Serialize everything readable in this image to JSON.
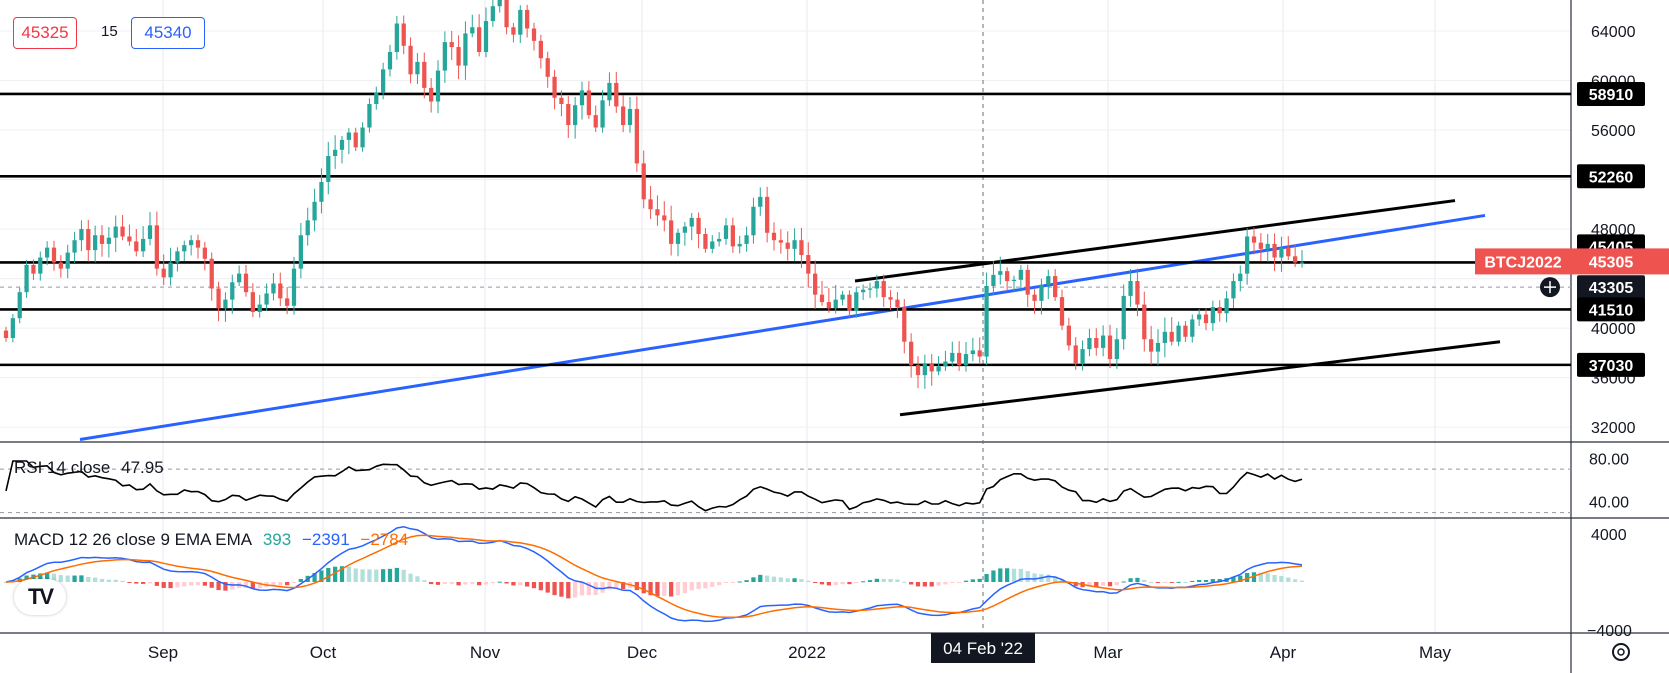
{
  "header": {
    "bid": "45325",
    "spread": "15",
    "ask": "45340"
  },
  "symbol_tag": "BTCJ2022",
  "crosshair_date": "04 Feb '22",
  "colors": {
    "up": "#26a69a",
    "down": "#ef5350",
    "trend_blue": "#2962ff",
    "macd_line": "#2962ff",
    "signal_line": "#ff6d00",
    "sr_line": "#000000",
    "last_price": "#ef5350"
  },
  "chart_data": [
    {
      "type": "candlestick",
      "x_ticks": [
        "Sep",
        "Oct",
        "Nov",
        "Dec",
        "2022",
        "Mar",
        "Apr",
        "May"
      ],
      "y_ticks": [
        "64000",
        "60000",
        "56000",
        "48000",
        "40000",
        "36000",
        "32000"
      ],
      "ylim": [
        30800,
        66500
      ],
      "levels": [
        "58910",
        "52260",
        "45405",
        "45305",
        "43305",
        "41510",
        "37030"
      ],
      "last_price": "45305",
      "approx_closes": [
        39200,
        40800,
        42900,
        45100,
        44400,
        45700,
        46500,
        45300,
        44800,
        46100,
        47100,
        48000,
        46300,
        47500,
        46800,
        47300,
        48200,
        47400,
        47000,
        46200,
        47200,
        48300,
        44800,
        44100,
        45300,
        46200,
        46700,
        47100,
        46500,
        45600,
        43200,
        41600,
        42300,
        43700,
        44400,
        42900,
        41300,
        41900,
        42800,
        43600,
        42400,
        41800,
        44800,
        47500,
        48700,
        50200,
        51800,
        53900,
        54400,
        55200,
        55800,
        54600,
        56200,
        58100,
        59000,
        60900,
        62300,
        64600,
        62800,
        60500,
        61500,
        59400,
        58300,
        60800,
        63100,
        62700,
        61200,
        63800,
        64300,
        62300,
        64800,
        66000,
        67500,
        64300,
        63700,
        65700,
        64200,
        63200,
        61800,
        60300,
        58600,
        58100,
        56400,
        58000,
        59200,
        57200,
        56200,
        58400,
        59800,
        57900,
        56400,
        57700,
        53300,
        50400,
        49600,
        49100,
        48700,
        46800,
        47700,
        48200,
        48900,
        47600,
        46400,
        47000,
        47200,
        48300,
        46600,
        46800,
        47500,
        49800,
        50600,
        47700,
        47100,
        46900,
        46400,
        47100,
        45900,
        44400,
        42700,
        42100,
        41600,
        42300,
        42700,
        41400,
        42900,
        43100,
        43200,
        43800,
        42500,
        42300,
        41700,
        38900,
        37000,
        36200,
        37100,
        36500,
        36900,
        37300,
        38000,
        37000,
        37900,
        38200,
        37700,
        43400,
        44300,
        44600,
        43800,
        43900,
        44700,
        42700,
        42200,
        43500,
        44200,
        42500,
        40200,
        38600,
        37100,
        38300,
        39200,
        38400,
        39400,
        37500,
        39100,
        42600,
        43800,
        41900,
        39100,
        38100,
        38800,
        39700,
        38900,
        40200,
        39300,
        40700,
        41100,
        40400,
        41700,
        41200,
        42400,
        43800,
        44400,
        47400,
        46900,
        46400,
        46800,
        45700,
        46500,
        45800,
        45300,
        45300
      ]
    },
    {
      "type": "line",
      "series": [
        {
          "name": "RSI 14 close",
          "last": "47.95"
        }
      ],
      "y_ticks": [
        "80.00",
        "40.00"
      ],
      "ylim": [
        25,
        95
      ]
    },
    {
      "type": "line",
      "series": [
        {
          "name": "MACD 12 26 close 9 EMA EMA",
          "value": "393"
        },
        {
          "value": "−2391"
        },
        {
          "value": "−2784"
        }
      ],
      "y_ticks": [
        "4000",
        "−4000"
      ]
    }
  ],
  "x_axis": [
    "Sep",
    "Oct",
    "Nov",
    "Dec",
    "2022",
    "Mar",
    "Apr",
    "May"
  ],
  "rsi_legend": {
    "name": "RSI 14 close",
    "value": "47.95"
  },
  "macd_legend": {
    "name": "MACD 12 26 close 9 EMA EMA",
    "hist": "393",
    "macd": "−2391",
    "signal": "−2784"
  },
  "logo": "TV"
}
